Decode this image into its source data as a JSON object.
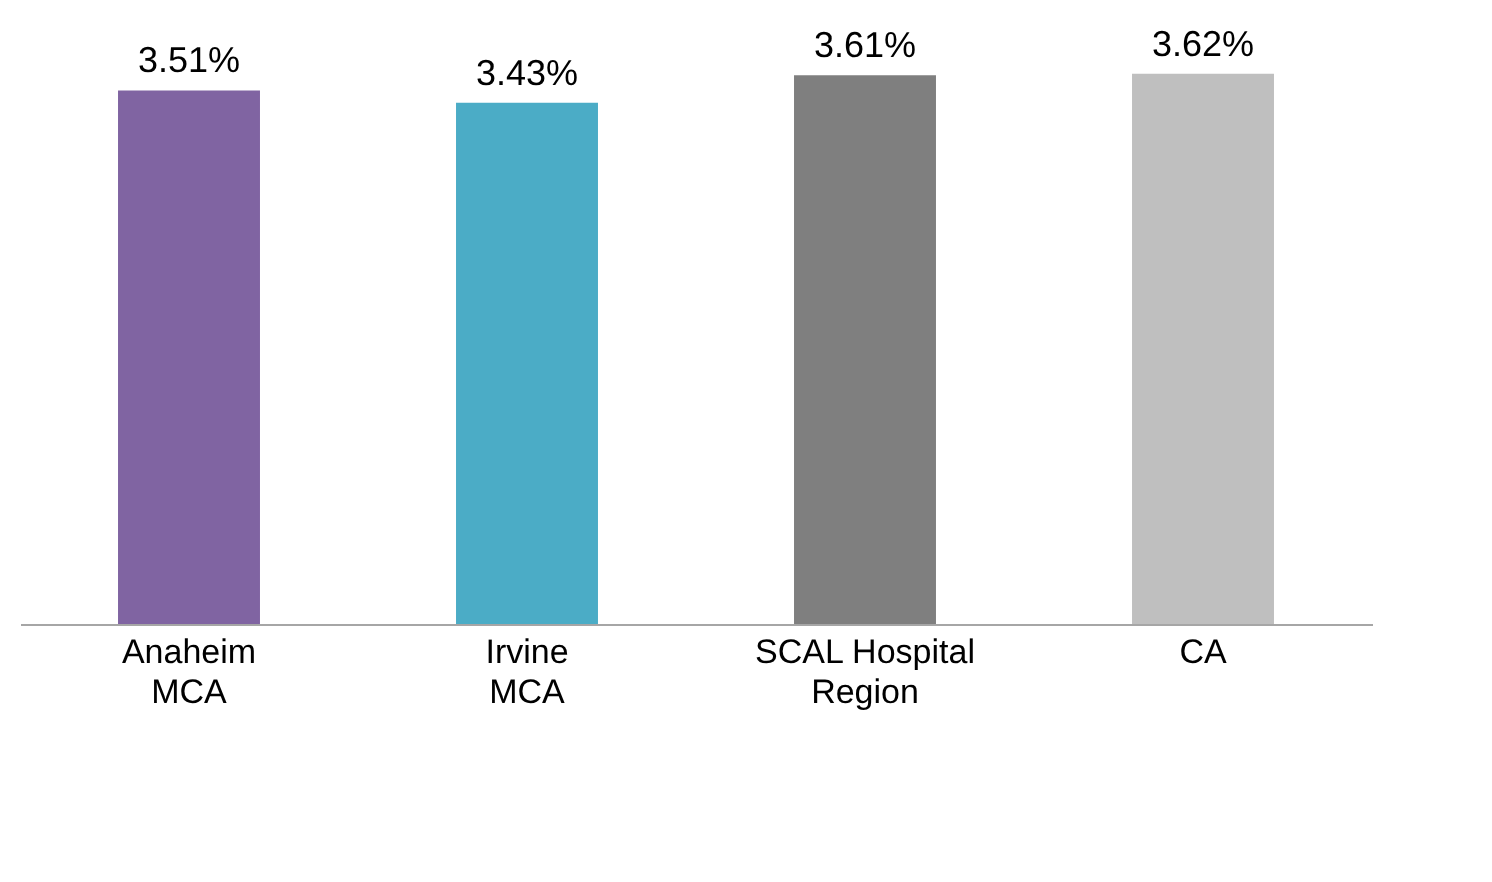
{
  "chart_data": {
    "type": "bar",
    "categories": [
      "Anaheim MCA",
      "Irvine MCA",
      "SCAL Hospital Region",
      "CA"
    ],
    "values": [
      3.51,
      3.43,
      3.61,
      3.62
    ],
    "colors": [
      "#8064a2",
      "#4bacc6",
      "#7f7f7f",
      "#bfbfbf"
    ],
    "value_labels": [
      "3.51%",
      "3.43%",
      "3.61%",
      "3.62%"
    ]
  }
}
